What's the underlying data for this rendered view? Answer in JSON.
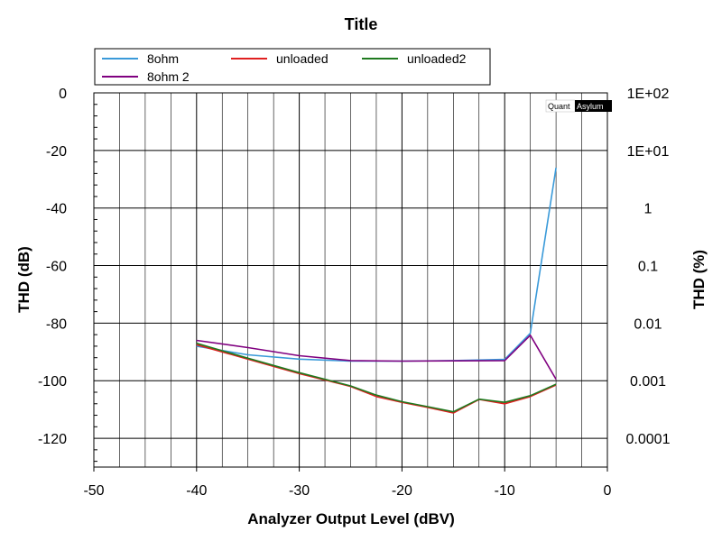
{
  "chart_data": {
    "type": "line",
    "title": "Title",
    "xlabel": "Analyzer Output Level (dBV)",
    "ylabel": "THD (dB)",
    "y2label": "THD (%)",
    "xlim": [
      -50,
      0
    ],
    "ylim": [
      -130,
      0
    ],
    "x_ticks": [
      -50,
      -40,
      -30,
      -20,
      -10,
      0
    ],
    "y_ticks": [
      0,
      -20,
      -40,
      -60,
      -80,
      -100,
      -120
    ],
    "y2_ticks": [
      {
        "db": 0,
        "label": "1E+02"
      },
      {
        "db": -20,
        "label": "1E+01"
      },
      {
        "db": -40,
        "label": "1"
      },
      {
        "db": -60,
        "label": "0.1"
      },
      {
        "db": -80,
        "label": "0.01"
      },
      {
        "db": -100,
        "label": "0.001"
      },
      {
        "db": -120,
        "label": "0.0001"
      }
    ],
    "grid": true,
    "legend_position": "top",
    "series": [
      {
        "name": "8ohm",
        "color": "#3a9ad9",
        "x": [
          -40,
          -35,
          -30,
          -25,
          -20,
          -15,
          -10,
          -7.5,
          -5
        ],
        "y": [
          -88,
          -91,
          -92.5,
          -93.2,
          -93.2,
          -93,
          -92.6,
          -83.5,
          -26
        ]
      },
      {
        "name": "unloaded",
        "color": "#e02020",
        "x": [
          -40,
          -35,
          -30,
          -25,
          -22.5,
          -20,
          -17.5,
          -15,
          -12.5,
          -10,
          -7.5,
          -5
        ],
        "y": [
          -87.5,
          -92.5,
          -97.5,
          -102,
          -105.5,
          -107.5,
          -109.3,
          -111.2,
          -106.5,
          -108,
          -105.5,
          -101.5
        ]
      },
      {
        "name": "8ohm 2",
        "color": "#800080",
        "x": [
          -40,
          -35,
          -30,
          -25,
          -20,
          -15,
          -10,
          -7.5,
          -5
        ],
        "y": [
          -86,
          -88.5,
          -91.3,
          -93,
          -93.2,
          -93.1,
          -93,
          -84.2,
          -99.5
        ]
      },
      {
        "name": "unloaded2",
        "color": "#1f7a1f",
        "x": [
          -40,
          -35,
          -30,
          -25,
          -22.5,
          -20,
          -17.5,
          -15,
          -12.5,
          -10,
          -7.5,
          -5
        ],
        "y": [
          -87,
          -92.2,
          -97.2,
          -101.8,
          -105,
          -107.3,
          -109,
          -110.8,
          -106.4,
          -107.5,
          -105.2,
          -101.2
        ]
      }
    ],
    "legend_order": [
      "8ohm",
      "unloaded",
      "unloaded2",
      "8ohm 2"
    ]
  },
  "watermark": {
    "left": "Quant",
    "right": "Asylum"
  }
}
